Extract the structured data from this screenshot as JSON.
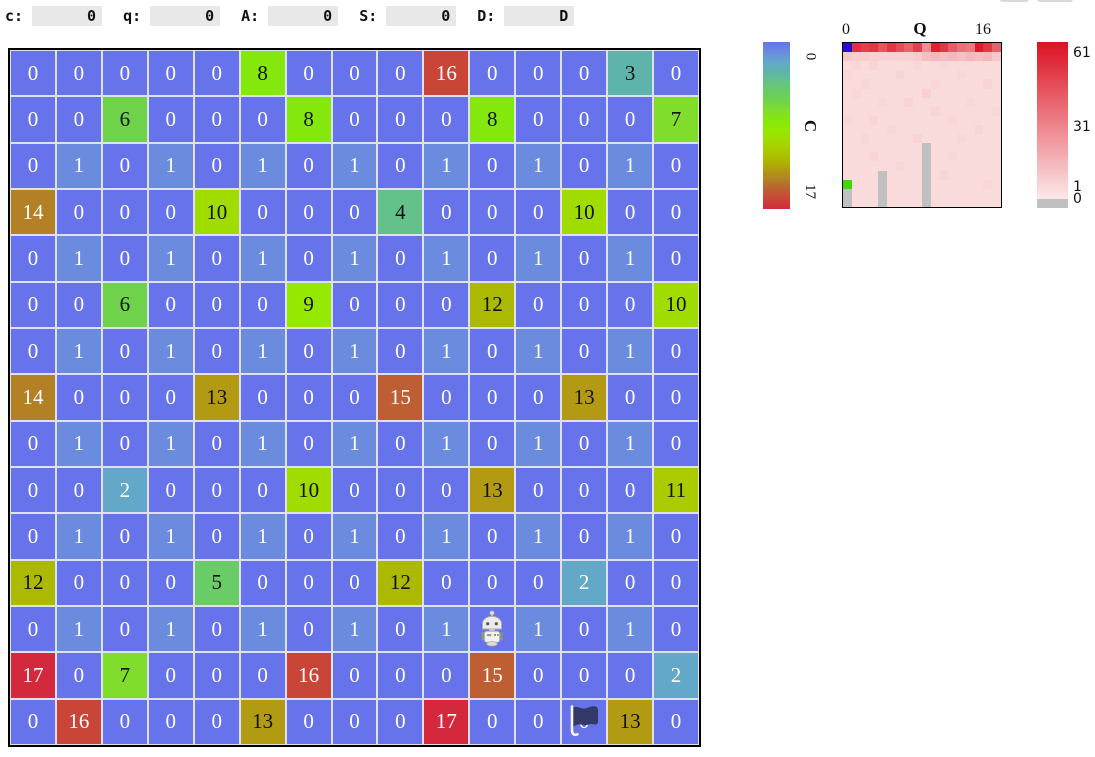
{
  "toolbar": {
    "fields": [
      {
        "label": "c:",
        "value": "0"
      },
      {
        "label": "q:",
        "value": "0"
      },
      {
        "label": "A:",
        "value": "0"
      },
      {
        "label": "S:",
        "value": "0"
      },
      {
        "label": "D:",
        "value": "D"
      }
    ]
  },
  "grid": {
    "rows": 15,
    "cols": 15,
    "values": [
      [
        0,
        0,
        0,
        0,
        0,
        8,
        0,
        0,
        0,
        16,
        0,
        0,
        0,
        3,
        0
      ],
      [
        0,
        0,
        6,
        0,
        0,
        0,
        8,
        0,
        0,
        0,
        8,
        0,
        0,
        0,
        7
      ],
      [
        0,
        1,
        0,
        1,
        0,
        1,
        0,
        1,
        0,
        1,
        0,
        1,
        0,
        1,
        0
      ],
      [
        14,
        0,
        0,
        0,
        10,
        0,
        0,
        0,
        4,
        0,
        0,
        0,
        10,
        0,
        0
      ],
      [
        0,
        1,
        0,
        1,
        0,
        1,
        0,
        1,
        0,
        1,
        0,
        1,
        0,
        1,
        0
      ],
      [
        0,
        0,
        6,
        0,
        0,
        0,
        9,
        0,
        0,
        0,
        12,
        0,
        0,
        0,
        10
      ],
      [
        0,
        1,
        0,
        1,
        0,
        1,
        0,
        1,
        0,
        1,
        0,
        1,
        0,
        1,
        0
      ],
      [
        14,
        0,
        0,
        0,
        13,
        0,
        0,
        0,
        15,
        0,
        0,
        0,
        13,
        0,
        0
      ],
      [
        0,
        1,
        0,
        1,
        0,
        1,
        0,
        1,
        0,
        1,
        0,
        1,
        0,
        1,
        0
      ],
      [
        0,
        0,
        2,
        0,
        0,
        0,
        10,
        0,
        0,
        0,
        13,
        0,
        0,
        0,
        11
      ],
      [
        0,
        1,
        0,
        1,
        0,
        1,
        0,
        1,
        0,
        1,
        0,
        1,
        0,
        1,
        0
      ],
      [
        12,
        0,
        0,
        0,
        5,
        0,
        0,
        0,
        12,
        0,
        0,
        0,
        2,
        0,
        0
      ],
      [
        0,
        1,
        0,
        1,
        0,
        1,
        0,
        1,
        0,
        1,
        0,
        1,
        0,
        1,
        0
      ],
      [
        17,
        0,
        7,
        0,
        0,
        0,
        16,
        0,
        0,
        0,
        15,
        0,
        0,
        0,
        2
      ],
      [
        0,
        16,
        0,
        0,
        0,
        13,
        0,
        0,
        0,
        17,
        0,
        0,
        0,
        13,
        0
      ]
    ],
    "robot": {
      "row": 12,
      "col": 10
    },
    "flag": {
      "row": 14,
      "col": 12
    }
  },
  "colors": {
    "value_colormap": [
      "#6673ea",
      "#6b8bdf",
      "#63a8c9",
      "#5eb3ab",
      "#64c189",
      "#69cc66",
      "#6fd24b",
      "#80dd2b",
      "#84e80c",
      "#95e800",
      "#a0dc00",
      "#aacb00",
      "#abb900",
      "#b29b12",
      "#b38026",
      "#bd5f33",
      "#c94538",
      "#d4293c"
    ],
    "dark_text_min": 3,
    "dark_text_max": 13,
    "cell_text_light": "#ffffff",
    "cell_text_dark": "#101010",
    "heat_low": "#fbe9e9",
    "heat_high": "#dd1122",
    "heat_gray": "#c0c0c0",
    "heat_blue": "#2a08e0",
    "heat_green": "#3fd800",
    "input_bg": "#e8e8e8",
    "flag_color": "#343a68"
  },
  "value_legend": {
    "tick_top": "0",
    "axis_label": "C",
    "tick_bottom": "17"
  },
  "heatmap": {
    "x_axis": {
      "tick_left": "0",
      "label": "Q",
      "tick_right": "16"
    },
    "y_axis": {
      "tick_top": "0",
      "label": "C",
      "tick_bottom": "17"
    },
    "cols": 18,
    "rows": 18,
    "max_count": 61,
    "cells": [
      [
        "B",
        52,
        48,
        50,
        42,
        50,
        44,
        38,
        48,
        26,
        56,
        50,
        40,
        34,
        32,
        58,
        50,
        38
      ],
      [
        10,
        8,
        8,
        7,
        7,
        7,
        7,
        7,
        8,
        12,
        14,
        12,
        14,
        12,
        14,
        12,
        14,
        10
      ],
      [
        4,
        5,
        4,
        6,
        4,
        4,
        4,
        4,
        5,
        4,
        4,
        5,
        4,
        4,
        4,
        4,
        4,
        4
      ],
      [
        5,
        4,
        4,
        4,
        4,
        4,
        6,
        4,
        4,
        4,
        4,
        4,
        4,
        5,
        4,
        4,
        4,
        4
      ],
      [
        4,
        4,
        6,
        4,
        4,
        4,
        4,
        4,
        4,
        4,
        5,
        4,
        4,
        4,
        4,
        4,
        6,
        4
      ],
      [
        4,
        5,
        4,
        4,
        4,
        4,
        4,
        4,
        4,
        7,
        4,
        4,
        4,
        4,
        4,
        4,
        4,
        4
      ],
      [
        4,
        4,
        4,
        4,
        5,
        4,
        4,
        6,
        4,
        4,
        4,
        4,
        4,
        4,
        5,
        4,
        4,
        4
      ],
      [
        4,
        4,
        4,
        4,
        4,
        4,
        4,
        4,
        4,
        4,
        6,
        4,
        4,
        4,
        4,
        4,
        4,
        5
      ],
      [
        5,
        4,
        4,
        6,
        4,
        4,
        4,
        4,
        4,
        4,
        4,
        4,
        5,
        4,
        4,
        4,
        4,
        4
      ],
      [
        4,
        4,
        4,
        4,
        4,
        5,
        4,
        4,
        4,
        4,
        4,
        4,
        4,
        4,
        4,
        6,
        4,
        4
      ],
      [
        4,
        4,
        5,
        4,
        4,
        4,
        4,
        4,
        6,
        4,
        4,
        4,
        4,
        5,
        4,
        4,
        4,
        4
      ],
      [
        4,
        4,
        4,
        4,
        4,
        4,
        4,
        4,
        4,
        "G",
        4,
        4,
        4,
        4,
        4,
        4,
        4,
        4
      ],
      [
        4,
        4,
        4,
        6,
        4,
        4,
        4,
        4,
        4,
        "G",
        4,
        4,
        5,
        4,
        4,
        4,
        4,
        4
      ],
      [
        4,
        4,
        4,
        4,
        4,
        4,
        5,
        4,
        4,
        "G",
        4,
        4,
        4,
        4,
        4,
        4,
        4,
        4
      ],
      [
        4,
        4,
        4,
        4,
        "G",
        4,
        4,
        4,
        4,
        "G",
        4,
        6,
        4,
        4,
        4,
        4,
        4,
        4
      ],
      [
        "N",
        4,
        4,
        4,
        "G",
        4,
        4,
        4,
        4,
        "G",
        4,
        4,
        4,
        4,
        4,
        4,
        5,
        4
      ],
      [
        "G",
        4,
        4,
        4,
        "G",
        4,
        4,
        4,
        4,
        "G",
        4,
        4,
        4,
        4,
        4,
        4,
        4,
        4
      ],
      [
        "G",
        4,
        4,
        4,
        "G",
        4,
        4,
        4,
        4,
        "G",
        4,
        4,
        4,
        4,
        4,
        4,
        4,
        4
      ]
    ]
  },
  "colorbar_right": {
    "ticks": [
      "61",
      "31",
      "1",
      "0"
    ]
  }
}
